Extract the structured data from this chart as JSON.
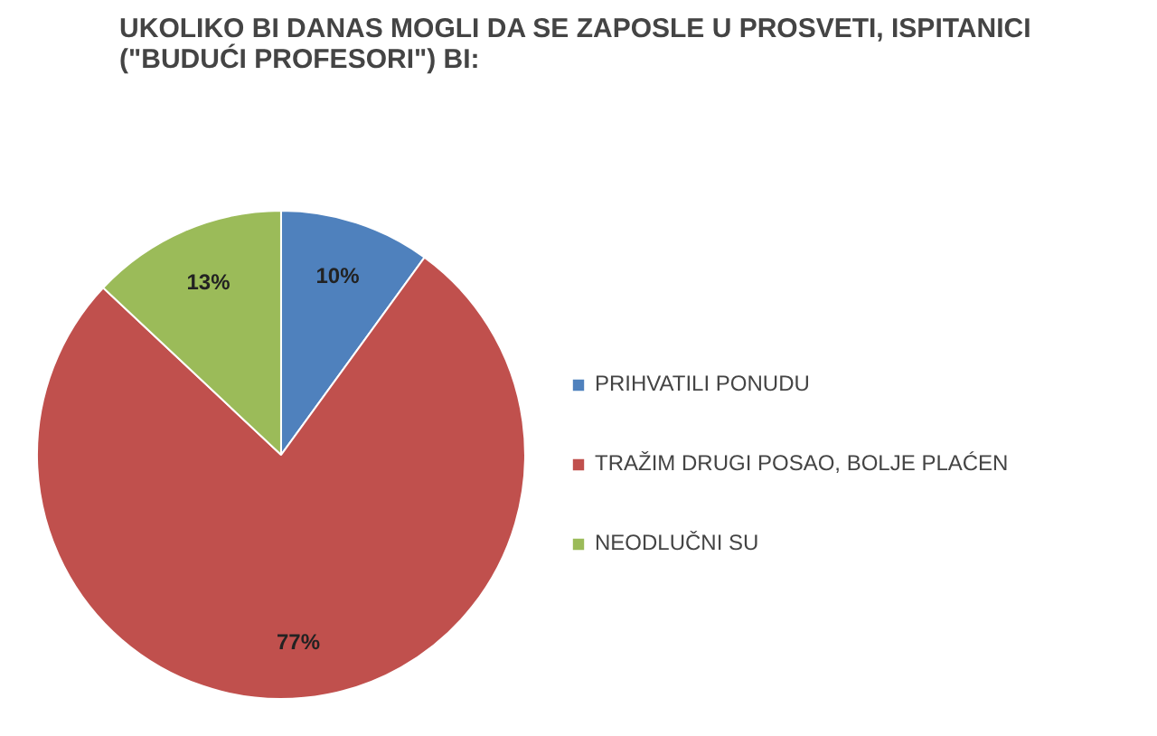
{
  "chart_data": {
    "type": "pie",
    "title": "UKOLIKO BI DANAS MOGLI DA SE ZAPOSLE U PROSVETI,  ISPITANICI\n(\"BUDUĆI PROFESORI\") BI:",
    "categories": [
      "PRIHVATILI PONUDU",
      "TRAŽIM DRUGI POSAO, BOLJE PLAĆEN",
      "NEODLUČNI SU"
    ],
    "values": [
      10,
      77,
      13
    ],
    "colors": [
      "#4f81bd",
      "#c0504d",
      "#9bbb59"
    ],
    "value_labels": [
      "10%",
      "77%",
      "13%"
    ],
    "legend": "right"
  }
}
